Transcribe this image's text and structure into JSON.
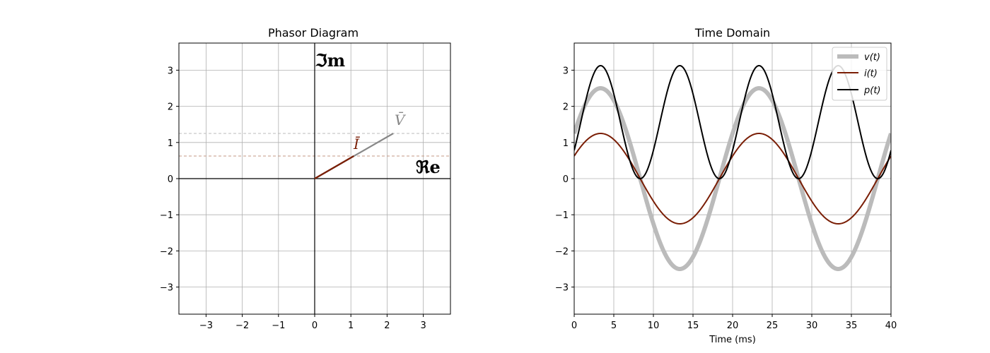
{
  "colors": {
    "voltage": "#bbbbbb",
    "current": "#7a1e05",
    "power": "#000000",
    "voltage_phasor": "#888888",
    "voltage_guide": "#bbbbbb",
    "current_guide": "#c49a86",
    "grid": "#b0b0b0"
  },
  "chart_data": [
    {
      "type": "line",
      "title": "Phasor Diagram",
      "xlim": [
        -3.75,
        3.75
      ],
      "ylim": [
        -3.75,
        3.75
      ],
      "xticks": [
        "−3",
        "−2",
        "−1",
        "0",
        "1",
        "2",
        "3"
      ],
      "yticks": [
        "−3",
        "−2",
        "−1",
        "0",
        "1",
        "2",
        "3"
      ],
      "grid": true,
      "axis_labels": {
        "real": "ℜe",
        "imag": "ℑm"
      },
      "phasors": [
        {
          "label": "V̄",
          "x": 2.17,
          "y": 1.25,
          "color": "#888888"
        },
        {
          "label": "Ī",
          "x": 1.08,
          "y": 0.625,
          "color": "#7a1e05"
        }
      ]
    },
    {
      "type": "line",
      "title": "Time Domain",
      "xlabel": "Time (ms)",
      "xlim": [
        0,
        40
      ],
      "ylim": [
        -3.75,
        3.75
      ],
      "xticks": [
        "0",
        "5",
        "10",
        "15",
        "20",
        "25",
        "30",
        "35",
        "40"
      ],
      "yticks": [
        "−3",
        "−2",
        "−1",
        "0",
        "1",
        "2",
        "3"
      ],
      "grid": true,
      "legend": "top-right",
      "series": [
        {
          "name": "v(t)",
          "amplitude": 2.5,
          "period_ms": 20,
          "phase_deg": 30
        },
        {
          "name": "i(t)",
          "amplitude": 1.25,
          "period_ms": 20,
          "phase_deg": 30
        },
        {
          "name": "p(t)",
          "amplitude": 3.125,
          "period_ms": 10,
          "phase_deg": 60,
          "offset_note": "p = v·i"
        }
      ]
    }
  ]
}
